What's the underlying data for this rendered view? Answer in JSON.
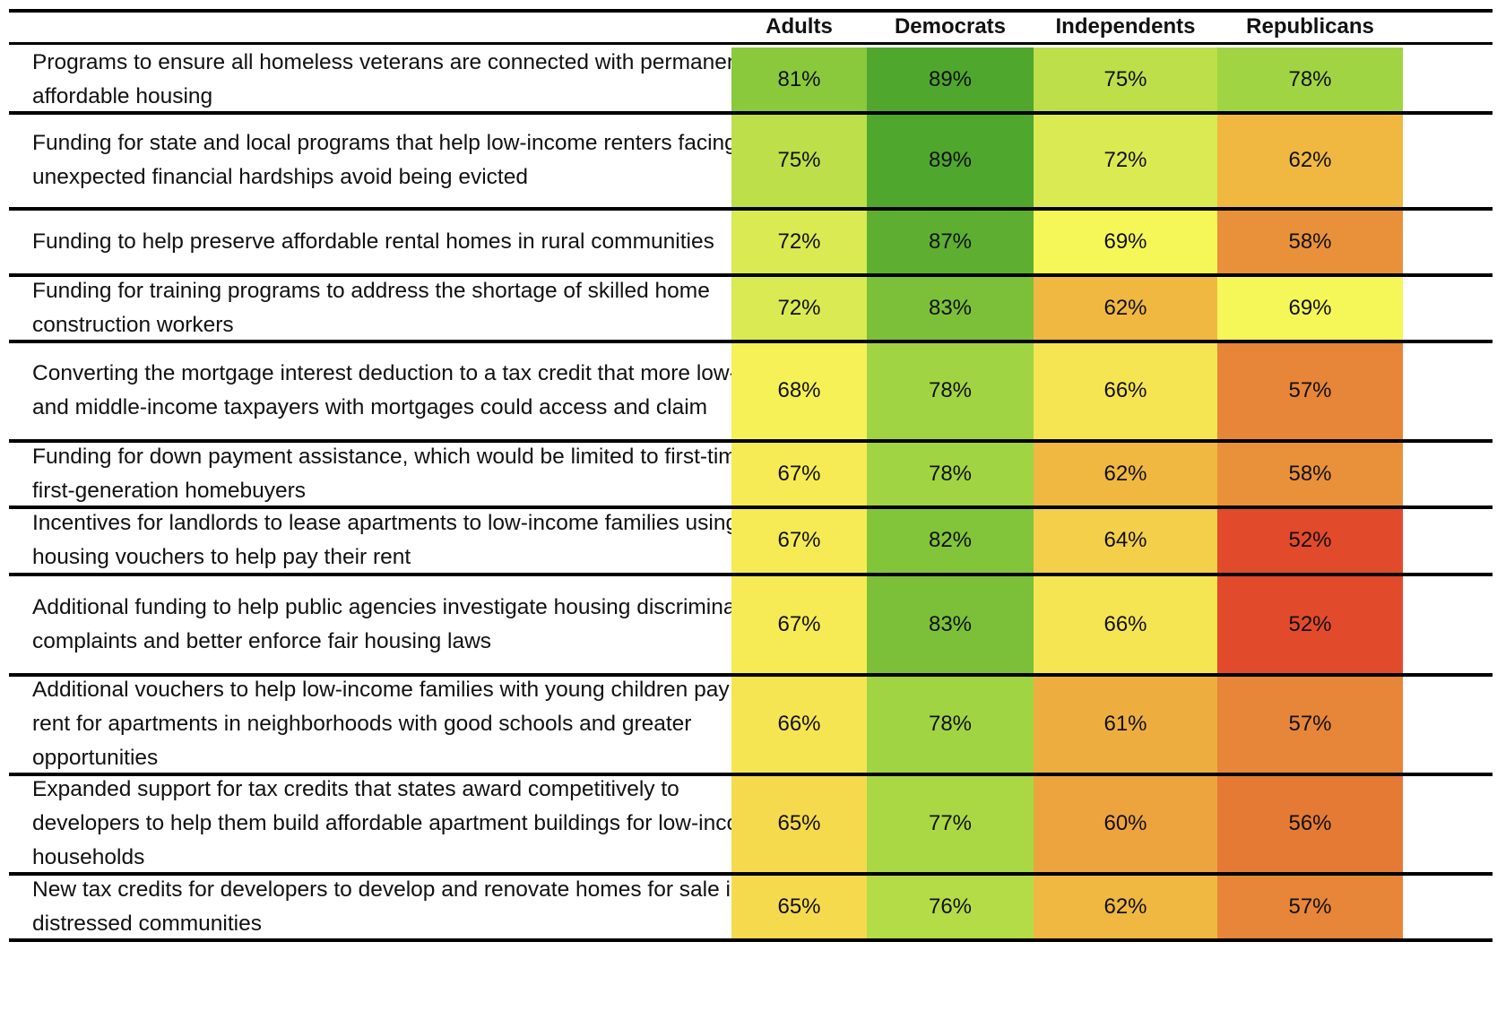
{
  "chart_data": {
    "type": "heatmap",
    "columns": [
      "Adults",
      "Democrats",
      "Independents",
      "Republicans"
    ],
    "rows": [
      {
        "label": "Programs to ensure all homeless veterans are connected with permanent, affordable housing",
        "values": [
          81,
          89,
          75,
          78
        ],
        "display": [
          "81%",
          "89%",
          "75%",
          "78%"
        ]
      },
      {
        "label": "Funding for state and local programs that help low-income renters facing unexpected financial hardships avoid being evicted",
        "values": [
          75,
          89,
          72,
          62
        ],
        "display": [
          "75%",
          "89%",
          "72%",
          "62%"
        ]
      },
      {
        "label": "Funding to help preserve affordable rental homes in rural communities",
        "values": [
          72,
          87,
          69,
          58
        ],
        "display": [
          "72%",
          "87%",
          "69%",
          "58%"
        ]
      },
      {
        "label": "Funding for training programs to address the shortage of skilled home construction workers",
        "values": [
          72,
          83,
          62,
          69
        ],
        "display": [
          "72%",
          "83%",
          "62%",
          "69%"
        ]
      },
      {
        "label": "Converting the mortgage interest deduction to a tax credit that more low- and middle-income taxpayers with mortgages could access and claim",
        "values": [
          68,
          78,
          66,
          57
        ],
        "display": [
          "68%",
          "78%",
          "66%",
          "57%"
        ]
      },
      {
        "label": "Funding for down payment assistance, which would be limited to first-time, first-generation homebuyers",
        "values": [
          67,
          78,
          62,
          58
        ],
        "display": [
          "67%",
          "78%",
          "62%",
          "58%"
        ]
      },
      {
        "label": "Incentives for landlords to lease apartments to low-income families using housing vouchers to help pay their rent",
        "values": [
          67,
          82,
          64,
          52
        ],
        "display": [
          "67%",
          "82%",
          "64%",
          "52%"
        ]
      },
      {
        "label": "Additional funding to help public agencies investigate housing discrimination complaints and better enforce fair housing laws",
        "values": [
          67,
          83,
          66,
          52
        ],
        "display": [
          "67%",
          "83%",
          "66%",
          "52%"
        ]
      },
      {
        "label": "Additional vouchers to help low-income families with young children pay the rent for apartments in neighborhoods with good schools and greater opportunities",
        "values": [
          66,
          78,
          61,
          57
        ],
        "display": [
          "66%",
          "78%",
          "61%",
          "57%"
        ]
      },
      {
        "label": "Expanded support for tax credits that states award competitively to developers to help them build affordable apartment buildings for low-income households",
        "values": [
          65,
          77,
          60,
          56
        ],
        "display": [
          "65%",
          "77%",
          "60%",
          "56%"
        ]
      },
      {
        "label": "New tax credits for developers to develop and renovate homes for sale in distressed communities",
        "values": [
          65,
          76,
          62,
          57
        ],
        "display": [
          "65%",
          "76%",
          "62%",
          "57%"
        ]
      }
    ],
    "color_scale": [
      {
        "value": 52,
        "color": "#e24a2c"
      },
      {
        "value": 56,
        "color": "#e57a35"
      },
      {
        "value": 58,
        "color": "#e9903a"
      },
      {
        "value": 62,
        "color": "#f0b841"
      },
      {
        "value": 66,
        "color": "#f6e552"
      },
      {
        "value": 69,
        "color": "#f5f759"
      },
      {
        "value": 72,
        "color": "#d9ea52"
      },
      {
        "value": 77,
        "color": "#a9d844"
      },
      {
        "value": 82,
        "color": "#82c43a"
      },
      {
        "value": 89,
        "color": "#4fa72d"
      }
    ]
  }
}
